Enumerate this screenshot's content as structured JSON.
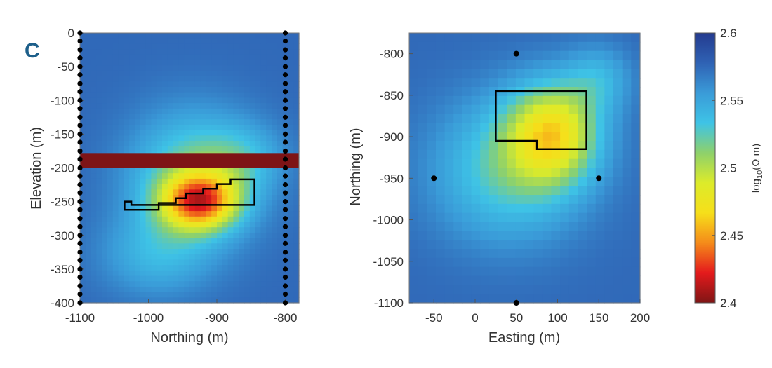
{
  "panel_label": "C",
  "colors": {
    "panel_label": "#1d5f8a",
    "colormap": [
      "#7f1515",
      "#e41a1c",
      "#f58b1a",
      "#f6df1a",
      "#dceb2a",
      "#8ed16b",
      "#3ec3e6",
      "#3a9bd8",
      "#2f62b4",
      "#243b8f"
    ],
    "layer_band": "#7e1416",
    "outline": "#000000",
    "electrode": "#000000"
  },
  "chart_data": [
    {
      "type": "heatmap",
      "name": "section",
      "xlabel": "Northing (m)",
      "ylabel": "Elevation (m)",
      "xlim": [
        -1100,
        -780
      ],
      "ylim": [
        -400,
        0
      ],
      "xticks": [
        "-1100",
        "-1000",
        "-900",
        "-800"
      ],
      "yticks": [
        "0",
        "-50",
        "-100",
        "-150",
        "-200",
        "-250",
        "-300",
        "-350",
        "-400"
      ],
      "values_unit": "log10(Ω m)",
      "background_value": 2.575,
      "anomalies": [
        {
          "x": -925,
          "y": -250,
          "sx": 55,
          "sy": 40,
          "amp": 0.11
        },
        {
          "x": -935,
          "y": -215,
          "sx": 90,
          "sy": 95,
          "amp": 0.06
        },
        {
          "x": -860,
          "y": -185,
          "sx": 60,
          "sy": 50,
          "amp": 0.025
        },
        {
          "x": -990,
          "y": -330,
          "sx": 80,
          "sy": 60,
          "amp": 0.03
        }
      ],
      "layer_band": {
        "ymin": -200,
        "ymax": -178,
        "value": 2.4
      },
      "outline": [
        [
          -1035,
          -252
        ],
        [
          -1035,
          -262
        ],
        [
          -985,
          -262
        ],
        [
          -985,
          -252
        ],
        [
          -960,
          -252
        ],
        [
          -960,
          -245
        ],
        [
          -945,
          -245
        ],
        [
          -945,
          -238
        ],
        [
          -920,
          -238
        ],
        [
          -920,
          -231
        ],
        [
          -900,
          -231
        ],
        [
          -900,
          -224
        ],
        [
          -880,
          -224
        ],
        [
          -880,
          -217
        ],
        [
          -845,
          -217
        ],
        [
          -845,
          -255
        ],
        [
          -1025,
          -255
        ],
        [
          -1025,
          -250
        ],
        [
          -1035,
          -250
        ]
      ],
      "electrodes_x": [
        -1100,
        -800
      ],
      "electrodes_y": [
        0,
        -12,
        -25,
        -37,
        -50,
        -62,
        -75,
        -87,
        -100,
        -112,
        -125,
        -137,
        -150,
        -162,
        -175,
        -187,
        -200,
        -212,
        -225,
        -237,
        -250,
        -262,
        -275,
        -287,
        -300,
        -312,
        -325,
        -337,
        -350,
        -362,
        -375,
        -387,
        -400
      ]
    },
    {
      "type": "heatmap",
      "name": "plan",
      "xlabel": "Easting (m)",
      "ylabel": "Northing (m)",
      "xlim": [
        -80,
        200
      ],
      "ylim": [
        -1100,
        -775
      ],
      "xticks": [
        "-50",
        "0",
        "50",
        "100",
        "150",
        "200"
      ],
      "yticks": [
        "-800",
        "-850",
        "-900",
        "-950",
        "-1000",
        "-1050",
        "-1100"
      ],
      "values_unit": "log10(Ω m)",
      "background_value": 2.575,
      "anomalies": [
        {
          "x": 95,
          "y": -895,
          "sx": 55,
          "sy": 60,
          "amp": 0.09
        },
        {
          "x": 40,
          "y": -940,
          "sx": 90,
          "sy": 85,
          "amp": 0.05
        },
        {
          "x": 150,
          "y": -830,
          "sx": 40,
          "sy": 40,
          "amp": 0.03
        }
      ],
      "outline": [
        [
          25,
          -845
        ],
        [
          135,
          -845
        ],
        [
          135,
          -915
        ],
        [
          75,
          -915
        ],
        [
          75,
          -905
        ],
        [
          25,
          -905
        ]
      ],
      "points": [
        [
          50,
          -800
        ],
        [
          -50,
          -950
        ],
        [
          150,
          -950
        ],
        [
          50,
          -1100
        ]
      ]
    }
  ],
  "colorbar": {
    "label": "log10(Ω m)",
    "label_base": "log",
    "label_sub": "10",
    "label_rest": "(Ω m)",
    "min": 2.4,
    "max": 2.6,
    "ticks": [
      "2.6",
      "2.55",
      "2.5",
      "2.45",
      "2.4"
    ]
  }
}
